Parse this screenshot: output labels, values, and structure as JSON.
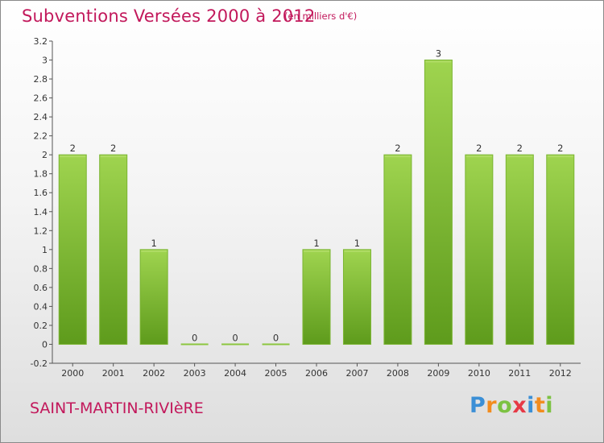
{
  "header": {
    "title": "Subventions Versées 2000 à 2012",
    "subtitle": "(en milliers d'€)"
  },
  "footer": {
    "town": "SAINT-MARTIN-RIVIèRE",
    "logo_letters": [
      {
        "ch": "P",
        "color": "#3b8fd6"
      },
      {
        "ch": "r",
        "color": "#f28c1e"
      },
      {
        "ch": "o",
        "color": "#7cc242"
      },
      {
        "ch": "x",
        "color": "#e63946"
      },
      {
        "ch": "i",
        "color": "#3b8fd6"
      },
      {
        "ch": "t",
        "color": "#f28c1e"
      },
      {
        "ch": "i",
        "color": "#7cc242"
      }
    ]
  },
  "chart_data": {
    "type": "bar",
    "categories": [
      "2000",
      "2001",
      "2002",
      "2003",
      "2004",
      "2005",
      "2006",
      "2007",
      "2008",
      "2009",
      "2010",
      "2011",
      "2012"
    ],
    "values": [
      2,
      2,
      1,
      0,
      0,
      0,
      1,
      1,
      2,
      3,
      2,
      2,
      2
    ],
    "data_labels": [
      "2",
      "2",
      "1",
      "0",
      "0",
      "0",
      "1",
      "1",
      "2",
      "3",
      "2",
      "2",
      "2"
    ],
    "ylim": [
      -0.2,
      3.2
    ],
    "yticks": [
      -0.2,
      0,
      0.2,
      0.4,
      0.6,
      0.8,
      1,
      1.2,
      1.4,
      1.6,
      1.8,
      2,
      2.2,
      2.4,
      2.6,
      2.8,
      3,
      3.2
    ],
    "ytick_labels": [
      "-0.2",
      "0",
      "0.2",
      "0.4",
      "0.6",
      "0.8",
      "1",
      "1.2",
      "1.4",
      "1.6",
      "1.8",
      "2",
      "2.2",
      "2.4",
      "2.6",
      "2.8",
      "3",
      "3.2"
    ],
    "grid": false,
    "bar_color": "#8cc63f",
    "bar_color_dark": "#5c9a1a",
    "title": "Subventions Versées 2000 à 2012",
    "xlabel": "",
    "ylabel": ""
  }
}
